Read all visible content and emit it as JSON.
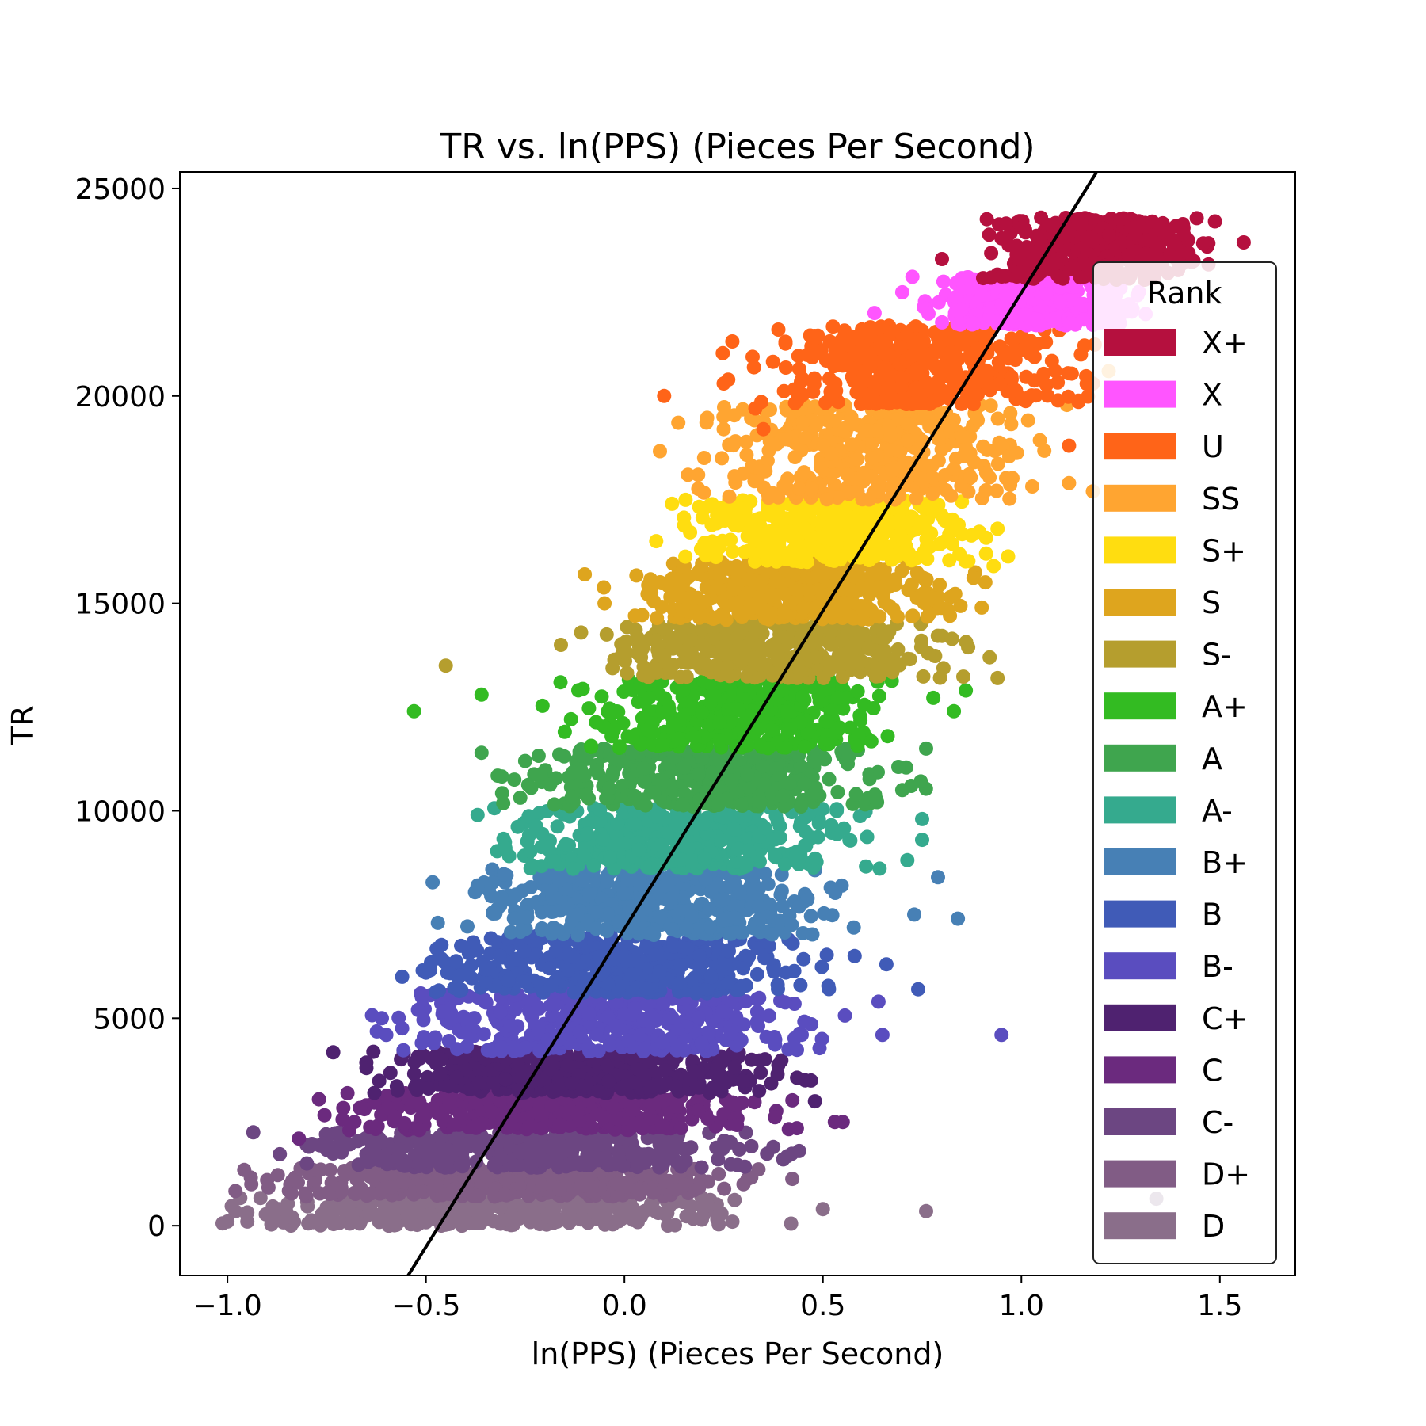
{
  "chart_data": {
    "type": "scatter",
    "title": "TR vs. ln(PPS) (Pieces Per Second)",
    "xlabel": "ln(PPS) (Pieces Per Second)",
    "ylabel": "TR",
    "xlim": [
      -1.12,
      1.69
    ],
    "ylim": [
      -1200,
      25400
    ],
    "xticks": [
      -1.0,
      -0.5,
      0.0,
      0.5,
      1.0,
      1.5
    ],
    "xtick_labels": [
      "−1.0",
      "−0.5",
      "0.0",
      "0.5",
      "1.0",
      "1.5"
    ],
    "yticks": [
      0,
      5000,
      10000,
      15000,
      20000,
      25000
    ],
    "ytick_labels": [
      "0",
      "5000",
      "10000",
      "15000",
      "20000",
      "25000"
    ],
    "grid": false,
    "legend": {
      "title": "Rank",
      "placement": "right"
    },
    "series": [
      {
        "name": "X+",
        "color": "#B5103E",
        "tr_range": [
          22800,
          24300
        ],
        "x_range": [
          0.97,
          1.4
        ],
        "outliers": [
          [
            0.8,
            23300
          ],
          [
            0.95,
            23800
          ],
          [
            1.4,
            24100
          ],
          [
            1.56,
            23700
          ],
          [
            1.33,
            24200
          ]
        ]
      },
      {
        "name": "X",
        "color": "#FF55FF",
        "tr_range": [
          21700,
          22900
        ],
        "x_range": [
          0.82,
          1.22
        ],
        "outliers": [
          [
            0.63,
            22000
          ],
          [
            0.7,
            22500
          ],
          [
            1.28,
            22100
          ],
          [
            1.25,
            22600
          ]
        ]
      },
      {
        "name": "U",
        "color": "#FF6418",
        "tr_range": [
          19800,
          21700
        ],
        "x_range": [
          0.43,
          1.08
        ],
        "outliers": [
          [
            0.1,
            20000
          ],
          [
            0.25,
            20300
          ],
          [
            0.33,
            19700
          ],
          [
            0.35,
            19200
          ],
          [
            0.48,
            21100
          ],
          [
            0.6,
            21200
          ],
          [
            1.15,
            21000
          ],
          [
            1.18,
            20300
          ],
          [
            1.12,
            18800
          ]
        ]
      },
      {
        "name": "SS",
        "color": "#FFA531",
        "tr_range": [
          17500,
          19800
        ],
        "x_range": [
          0.28,
          0.96
        ],
        "outliers": [
          [
            0.16,
            18100
          ],
          [
            0.25,
            19200
          ],
          [
            1.18,
            17700
          ],
          [
            1.12,
            17900
          ],
          [
            1.22,
            20600
          ]
        ]
      },
      {
        "name": "S+",
        "color": "#FFDD10",
        "tr_range": [
          16000,
          17500
        ],
        "x_range": [
          0.22,
          0.83
        ],
        "outliers": [
          [
            0.08,
            16500
          ],
          [
            0.12,
            17400
          ],
          [
            0.93,
            15900
          ],
          [
            0.94,
            16800
          ]
        ]
      },
      {
        "name": "S",
        "color": "#DEA51E",
        "tr_range": [
          14600,
          16000
        ],
        "x_range": [
          0.11,
          0.77
        ],
        "outliers": [
          [
            -0.1,
            15700
          ],
          [
            -0.05,
            15000
          ],
          [
            0.82,
            14700
          ],
          [
            0.9,
            14900
          ]
        ]
      },
      {
        "name": "S-",
        "color": "#B59E2E",
        "tr_range": [
          13200,
          14600
        ],
        "x_range": [
          0.03,
          0.71
        ],
        "outliers": [
          [
            -0.45,
            13500
          ],
          [
            -0.16,
            14000
          ],
          [
            0.92,
            13700
          ],
          [
            0.94,
            13200
          ]
        ]
      },
      {
        "name": "A+",
        "color": "#33BB22",
        "tr_range": [
          11500,
          13200
        ],
        "x_range": [
          -0.05,
          0.62
        ],
        "outliers": [
          [
            -0.53,
            12400
          ],
          [
            -0.36,
            12800
          ],
          [
            0.83,
            12400
          ],
          [
            0.86,
            12900
          ]
        ]
      },
      {
        "name": "A",
        "color": "#3FA54E",
        "tr_range": [
          10100,
          11500
        ],
        "x_range": [
          -0.16,
          0.58
        ],
        "outliers": [
          [
            -0.36,
            11400
          ],
          [
            -0.25,
            11200
          ],
          [
            0.76,
            11500
          ],
          [
            0.7,
            10500
          ]
        ]
      },
      {
        "name": "A-",
        "color": "#35AA8E",
        "tr_range": [
          8600,
          10100
        ],
        "x_range": [
          -0.23,
          0.51
        ],
        "outliers": [
          [
            -0.37,
            9900
          ],
          [
            -0.3,
            9100
          ],
          [
            0.75,
            9800
          ],
          [
            0.75,
            9300
          ]
        ]
      },
      {
        "name": "B+",
        "color": "#4780B5",
        "tr_range": [
          7000,
          8600
        ],
        "x_range": [
          -0.3,
          0.45
        ],
        "outliers": [
          [
            -0.47,
            7300
          ],
          [
            -0.37,
            8200
          ],
          [
            0.79,
            8400
          ],
          [
            0.84,
            7400
          ],
          [
            0.73,
            7500
          ]
        ]
      },
      {
        "name": "B",
        "color": "#405BB7",
        "tr_range": [
          5600,
          7000
        ],
        "x_range": [
          -0.4,
          0.38
        ],
        "outliers": [
          [
            -0.56,
            6000
          ],
          [
            -0.5,
            6100
          ],
          [
            0.66,
            6300
          ],
          [
            0.74,
            5700
          ],
          [
            0.58,
            6500
          ]
        ]
      },
      {
        "name": "B-",
        "color": "#5A4DBF",
        "tr_range": [
          4200,
          5600
        ],
        "x_range": [
          -0.48,
          0.36
        ],
        "outliers": [
          [
            -0.6,
            4600
          ],
          [
            -0.52,
            5200
          ],
          [
            0.65,
            4600
          ],
          [
            0.95,
            4600
          ],
          [
            0.64,
            5400
          ]
        ]
      },
      {
        "name": "C+",
        "color": "#4F2270",
        "tr_range": [
          3200,
          4200
        ],
        "x_range": [
          -0.53,
          0.31
        ],
        "outliers": [
          [
            -0.65,
            3800
          ],
          [
            -0.63,
            3200
          ],
          [
            0.47,
            3500
          ],
          [
            0.48,
            3000
          ]
        ]
      },
      {
        "name": "C",
        "color": "#6B2A7E",
        "tr_range": [
          2300,
          3200
        ],
        "x_range": [
          -0.6,
          0.28
        ],
        "outliers": [
          [
            -0.82,
            2100
          ],
          [
            -0.68,
            2500
          ],
          [
            0.55,
            2500
          ],
          [
            0.53,
            2500
          ]
        ]
      },
      {
        "name": "C-",
        "color": "#6C4682",
        "tr_range": [
          1400,
          2300
        ],
        "x_range": [
          -0.7,
          0.22
        ],
        "outliers": [
          [
            -0.8,
            1500
          ],
          [
            -0.75,
            2000
          ],
          [
            0.44,
            1800
          ],
          [
            0.4,
            1600
          ]
        ]
      },
      {
        "name": "D+",
        "color": "#815C85",
        "tr_range": [
          700,
          1400
        ],
        "x_range": [
          -0.78,
          0.18
        ],
        "outliers": [
          [
            -0.94,
            1000
          ],
          [
            -0.9,
            1100
          ],
          [
            0.3,
            1000
          ],
          [
            1.34,
            650
          ]
        ]
      },
      {
        "name": "D",
        "color": "#8A6E8A",
        "tr_range": [
          0,
          700
        ],
        "x_range": [
          -0.82,
          0.08
        ],
        "outliers": [
          [
            -1.0,
            100
          ],
          [
            -0.95,
            100
          ],
          [
            0.42,
            50
          ],
          [
            0.5,
            400
          ],
          [
            0.76,
            350
          ]
        ]
      }
    ],
    "trend_line": {
      "color": "#000000",
      "points": [
        [
          -0.545,
          -1200
        ],
        [
          1.19,
          25400
        ]
      ]
    }
  }
}
